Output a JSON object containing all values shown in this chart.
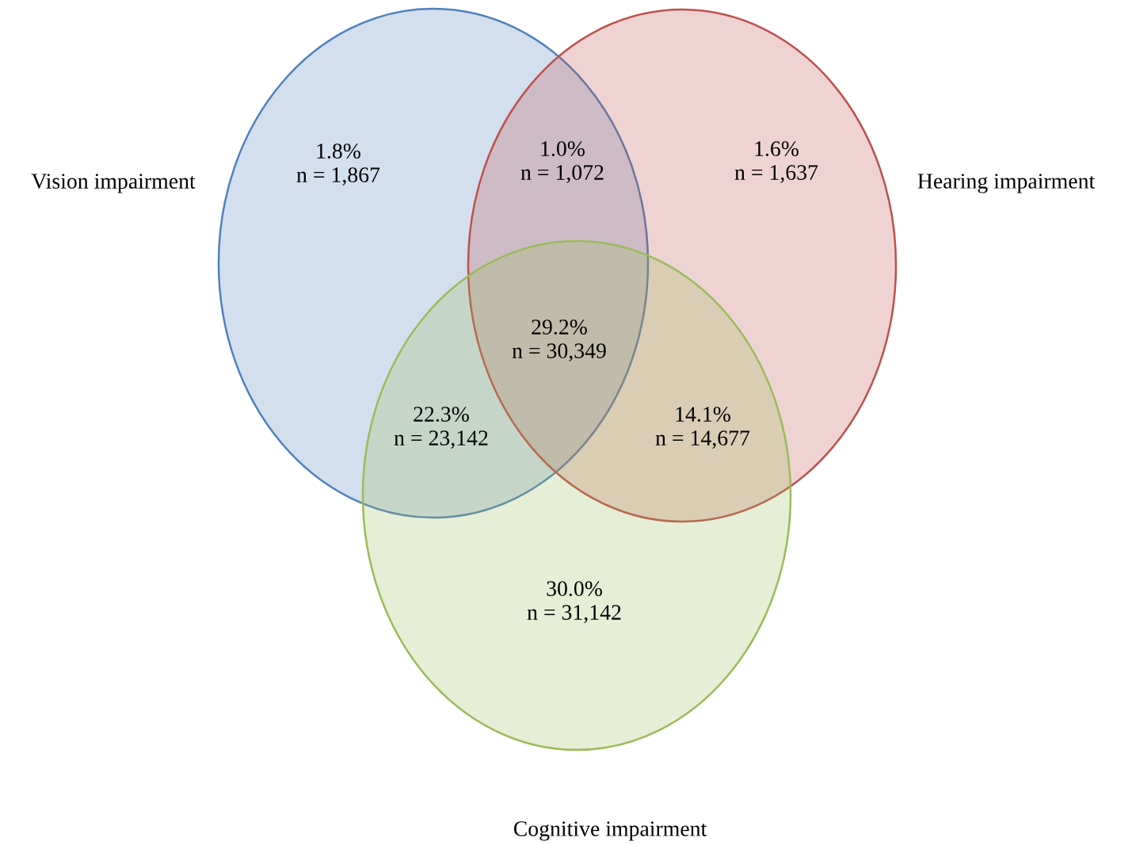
{
  "chart_data": {
    "type": "other",
    "categories": [
      null,
      null,
      null,
      null,
      null,
      null,
      null
    ],
    "values": [
      1.8,
      1.0,
      1.6,
      29.2,
      22.3,
      14.1,
      30.0
    ],
    "value_labels": [
      "1.8%\nn = 1,867",
      "1.0%\nn = 1,072",
      "1.6%\nn = 1,637",
      "29.2%\nn = 30,349",
      "22.3%\nn = 23,142",
      "14.1%\nn = 14,677",
      "30.0%\nn = 31,142"
    ],
    "annotations": [
      "Vision impairment",
      "Hearing impairment",
      "Cognitive impairment"
    ]
  }
}
